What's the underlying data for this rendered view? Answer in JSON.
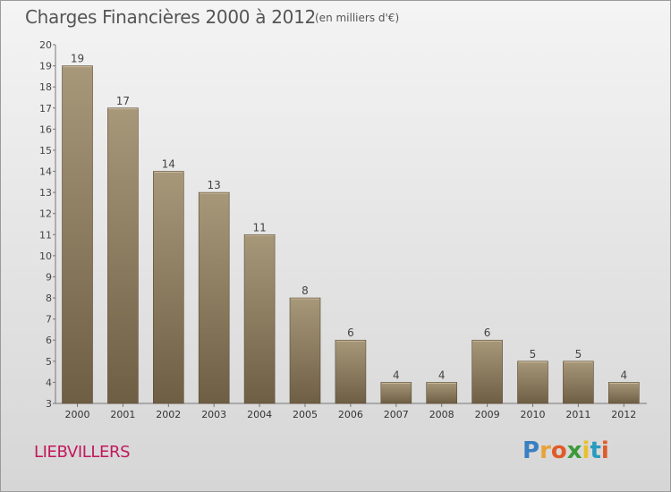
{
  "title": "Charges Financières 2000 à 2012",
  "subtitle": "(en milliers d'€)",
  "commune": "LIEBVILLERS",
  "logo": {
    "text": "Proxiti",
    "letters": [
      "P",
      "r",
      "o",
      "x",
      "i",
      "t",
      "i"
    ],
    "colors": [
      "#3a7fc1",
      "#e8a23a",
      "#e05b2a",
      "#3a9a3a",
      "#e8c12a",
      "#2a9ac1",
      "#e05b2a"
    ]
  },
  "colors": {
    "bar_top": "#a8987a",
    "bar_bottom": "#6e5e44",
    "accent": "#c2185b",
    "text": "#555555"
  },
  "chart_data": {
    "type": "bar",
    "title": "Charges Financières 2000 à 2012",
    "subtitle": "(en milliers d'€)",
    "categories": [
      "2000",
      "2001",
      "2002",
      "2003",
      "2004",
      "2005",
      "2006",
      "2007",
      "2008",
      "2009",
      "2010",
      "2011",
      "2012"
    ],
    "values": [
      19,
      17,
      14,
      13,
      11,
      8,
      6,
      4,
      4,
      6,
      5,
      5,
      4
    ],
    "ylim": [
      3,
      20
    ],
    "yticks": [
      3,
      4,
      5,
      6,
      7,
      8,
      9,
      10,
      11,
      12,
      13,
      14,
      15,
      16,
      17,
      18,
      19,
      20
    ],
    "grid": false,
    "legend": "none"
  }
}
